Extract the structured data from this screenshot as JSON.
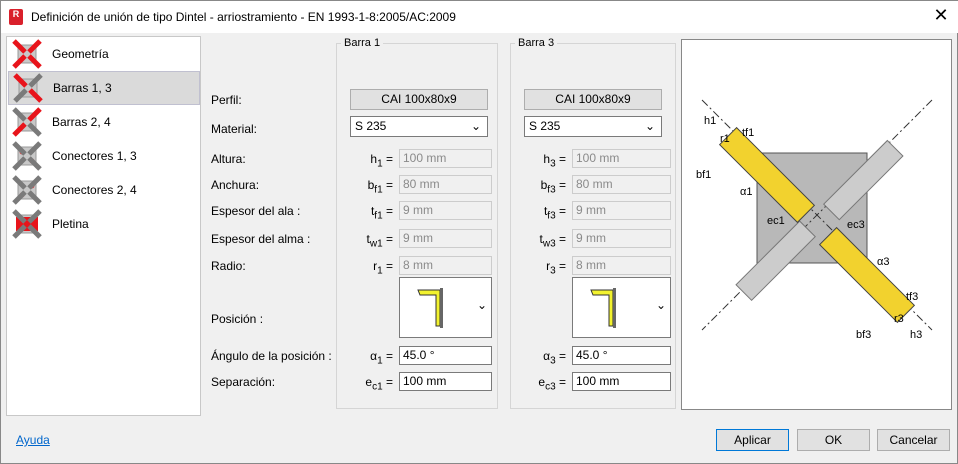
{
  "window": {
    "title": "Definición de unión de tipo Dintel - arriostramiento  - EN 1993-1-8:2005/AC:2009",
    "app_icon": "R",
    "close": "✕"
  },
  "sidebar": {
    "items": [
      {
        "label": "Geometría",
        "icon": "geometry-icon"
      },
      {
        "label": "Barras 1, 3",
        "icon": "bars-1-3-icon",
        "selected": true
      },
      {
        "label": "Barras 2, 4",
        "icon": "bars-2-4-icon"
      },
      {
        "label": "Conectores 1, 3",
        "icon": "connectors-1-3-icon"
      },
      {
        "label": "Conectores 2, 4",
        "icon": "connectors-2-4-icon"
      },
      {
        "label": "Pletina",
        "icon": "plate-icon"
      }
    ]
  },
  "labels": {
    "perfil": "Perfil:",
    "material": "Material:",
    "altura": "Altura:",
    "anchura": "Anchura:",
    "espesor_ala": "Espesor del ala :",
    "espesor_alma": "Espesor del alma :",
    "radio": "Radio:",
    "posicion": "Posición :",
    "angulo": "Ángulo de la posición :",
    "separacion": "Separación:"
  },
  "bars": [
    {
      "title": "Barra 1",
      "profile": "CAI 100x80x9",
      "material": "S 235",
      "h_sym": "h",
      "h_sub": "1",
      "h": "100 mm",
      "b_sym": "b",
      "b_sub": "f1",
      "b": "80 mm",
      "tf_sym": "t",
      "tf_sub": "f1",
      "tf": "9 mm",
      "tw_sym": "t",
      "tw_sub": "w1",
      "tw": "9 mm",
      "r_sym": "r",
      "r_sub": "1",
      "r": "8 mm",
      "a_sym": "α",
      "a_sub": "1",
      "angle": "45.0 °",
      "e_sym": "e",
      "e_sub": "c1",
      "sep": "100 mm"
    },
    {
      "title": "Barra 3",
      "profile": "CAI 100x80x9",
      "material": "S 235",
      "h_sym": "h",
      "h_sub": "3",
      "h": "100 mm",
      "b_sym": "b",
      "b_sub": "f3",
      "b": "80 mm",
      "tf_sym": "t",
      "tf_sub": "f3",
      "tf": "9 mm",
      "tw_sym": "t",
      "tw_sub": "w3",
      "tw": "9 mm",
      "r_sym": "r",
      "r_sub": "3",
      "r": "8 mm",
      "a_sym": "α",
      "a_sub": "3",
      "angle": "45.0 °",
      "e_sym": "e",
      "e_sub": "c3",
      "sep": "100 mm"
    }
  ],
  "eq": "=",
  "diagram": {
    "labels": [
      "h1",
      "r1",
      "tf1",
      "bf1",
      "α1",
      "ec1",
      "ec3",
      "α3",
      "tf3",
      "r3",
      "bf3",
      "h3"
    ],
    "accent": "#f2d22e"
  },
  "footer": {
    "help": "Ayuda",
    "apply": "Aplicar",
    "ok": "OK",
    "cancel": "Cancelar"
  }
}
